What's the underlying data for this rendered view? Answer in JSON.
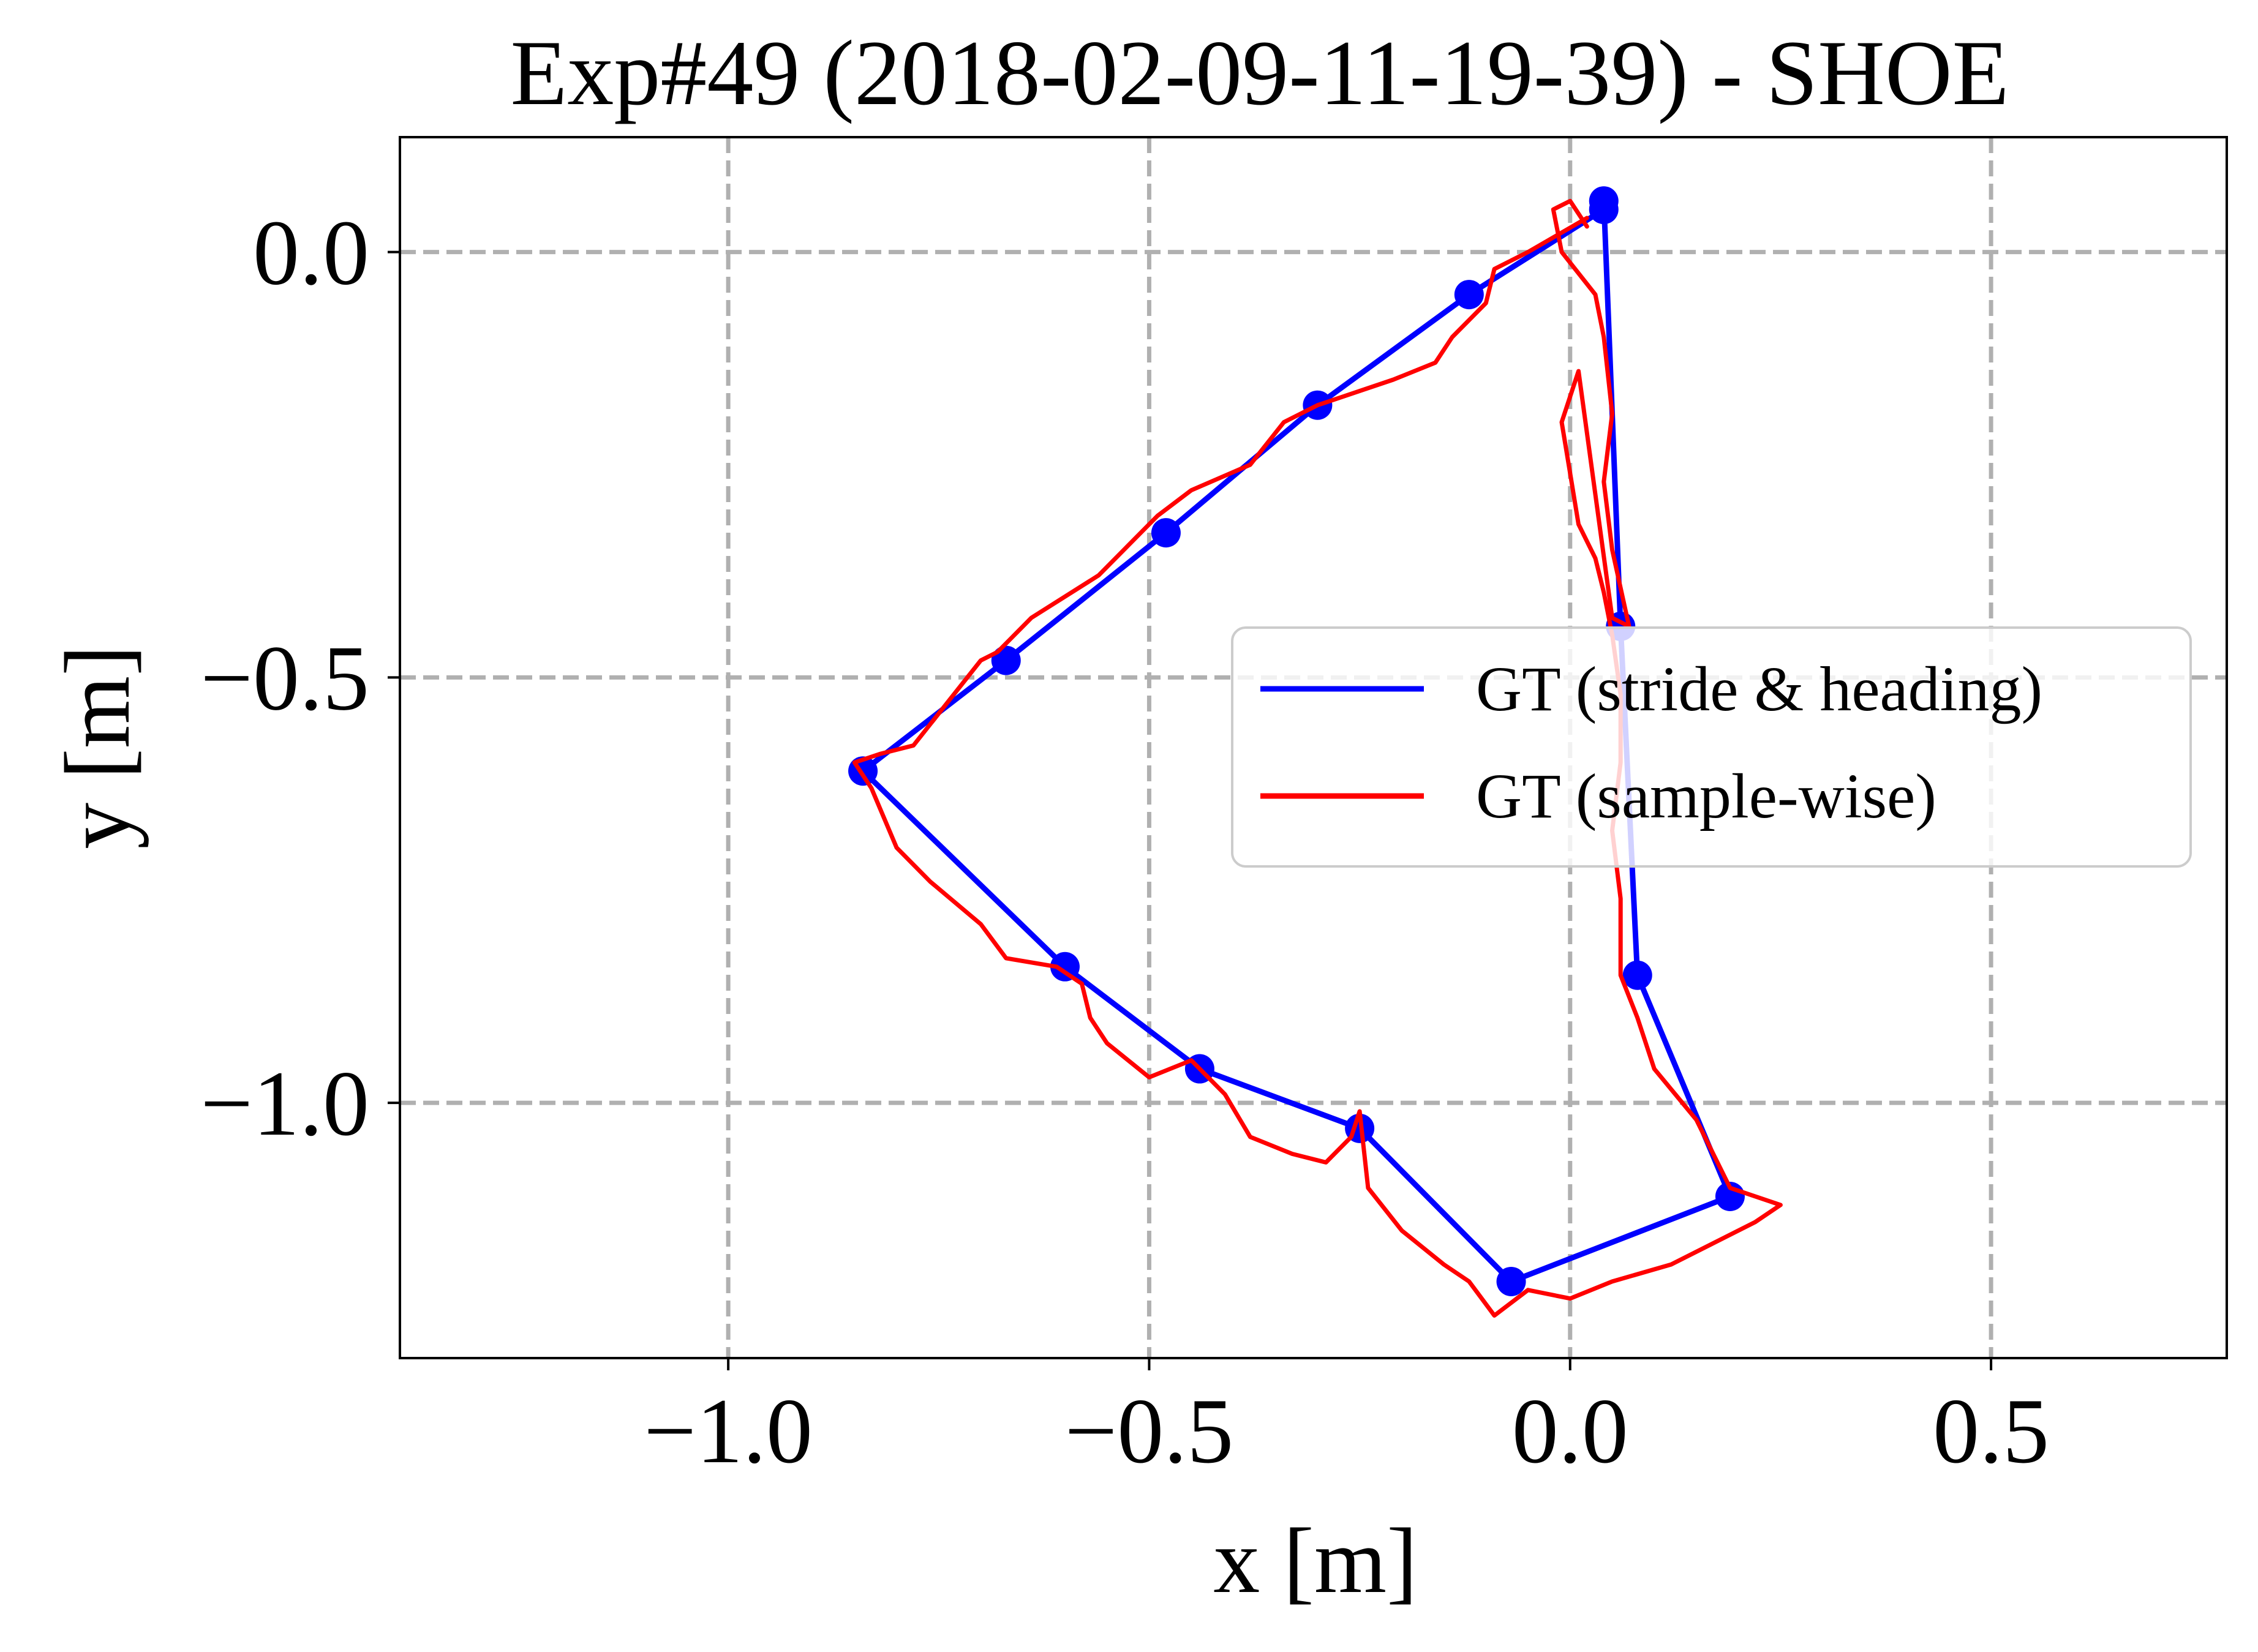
{
  "chart_data": {
    "type": "line",
    "title": "Exp#49 (2018-02-09-11-19-39) - SHOE",
    "xlabel": "x [m]",
    "ylabel": "y [m]",
    "xlim": [
      -1.39,
      0.78
    ],
    "ylim": [
      -1.3,
      0.135
    ],
    "xticks": [
      -1.0,
      -0.5,
      0.0,
      0.5
    ],
    "yticks": [
      0.0,
      -0.5,
      -1.0
    ],
    "xtick_labels": [
      "−1.0",
      "−0.5",
      "0.0",
      "0.5"
    ],
    "ytick_labels": [
      "0.0",
      "−0.5",
      "−1.0"
    ],
    "grid": true,
    "grid_style": "dashed",
    "legend_position": "center-right",
    "series": [
      {
        "name": "GT (stride & heading)",
        "color": "#0000ff",
        "markers": true,
        "x": [
          0.04,
          -0.12,
          -0.3,
          -0.48,
          -0.67,
          -0.84,
          -0.6,
          -0.44,
          -0.25,
          -0.07,
          0.19,
          0.08,
          0.06,
          0.04
        ],
        "y": [
          0.05,
          -0.05,
          -0.18,
          -0.33,
          -0.48,
          -0.61,
          -0.84,
          -0.96,
          -1.03,
          -1.21,
          -1.11,
          -0.85,
          -0.44,
          0.06
        ]
      },
      {
        "name": "GT (sample-wise)",
        "color": "#ff0000",
        "markers": false,
        "x": [
          0.02,
          -0.05,
          -0.09,
          -0.1,
          -0.14,
          -0.16,
          -0.21,
          -0.3,
          -0.34,
          -0.38,
          -0.45,
          -0.49,
          -0.53,
          -0.56,
          -0.64,
          -0.68,
          -0.7,
          -0.74,
          -0.78,
          -0.82,
          -0.85,
          -0.83,
          -0.8,
          -0.76,
          -0.7,
          -0.67,
          -0.61,
          -0.58,
          -0.57,
          -0.55,
          -0.5,
          -0.45,
          -0.41,
          -0.38,
          -0.33,
          -0.29,
          -0.26,
          -0.25,
          -0.24,
          -0.2,
          -0.15,
          -0.12,
          -0.09,
          -0.05,
          0.0,
          0.05,
          0.12,
          0.18,
          0.22,
          0.25,
          0.19,
          0.15,
          0.1,
          0.08,
          0.06,
          0.06,
          0.05,
          0.06,
          0.06,
          0.05,
          0.04,
          0.03,
          0.01,
          0.0,
          -0.01,
          0.01,
          0.05,
          0.07,
          0.05,
          0.04,
          0.05,
          0.04,
          0.03,
          -0.01,
          -0.02,
          0.0,
          0.02
        ],
        "y": [
          0.04,
          0.0,
          -0.02,
          -0.06,
          -0.1,
          -0.13,
          -0.15,
          -0.18,
          -0.2,
          -0.25,
          -0.28,
          -0.31,
          -0.35,
          -0.38,
          -0.43,
          -0.47,
          -0.48,
          -0.53,
          -0.58,
          -0.59,
          -0.6,
          -0.63,
          -0.7,
          -0.74,
          -0.79,
          -0.83,
          -0.84,
          -0.86,
          -0.9,
          -0.93,
          -0.97,
          -0.95,
          -0.99,
          -1.04,
          -1.06,
          -1.07,
          -1.04,
          -1.01,
          -1.1,
          -1.15,
          -1.19,
          -1.21,
          -1.25,
          -1.22,
          -1.23,
          -1.21,
          -1.19,
          -1.16,
          -1.14,
          -1.12,
          -1.1,
          -1.02,
          -0.96,
          -0.9,
          -0.85,
          -0.76,
          -0.68,
          -0.6,
          -0.52,
          -0.45,
          -0.4,
          -0.36,
          -0.32,
          -0.26,
          -0.2,
          -0.14,
          -0.43,
          -0.44,
          -0.35,
          -0.27,
          -0.19,
          -0.1,
          -0.05,
          0.0,
          0.05,
          0.06,
          0.03
        ]
      }
    ]
  }
}
